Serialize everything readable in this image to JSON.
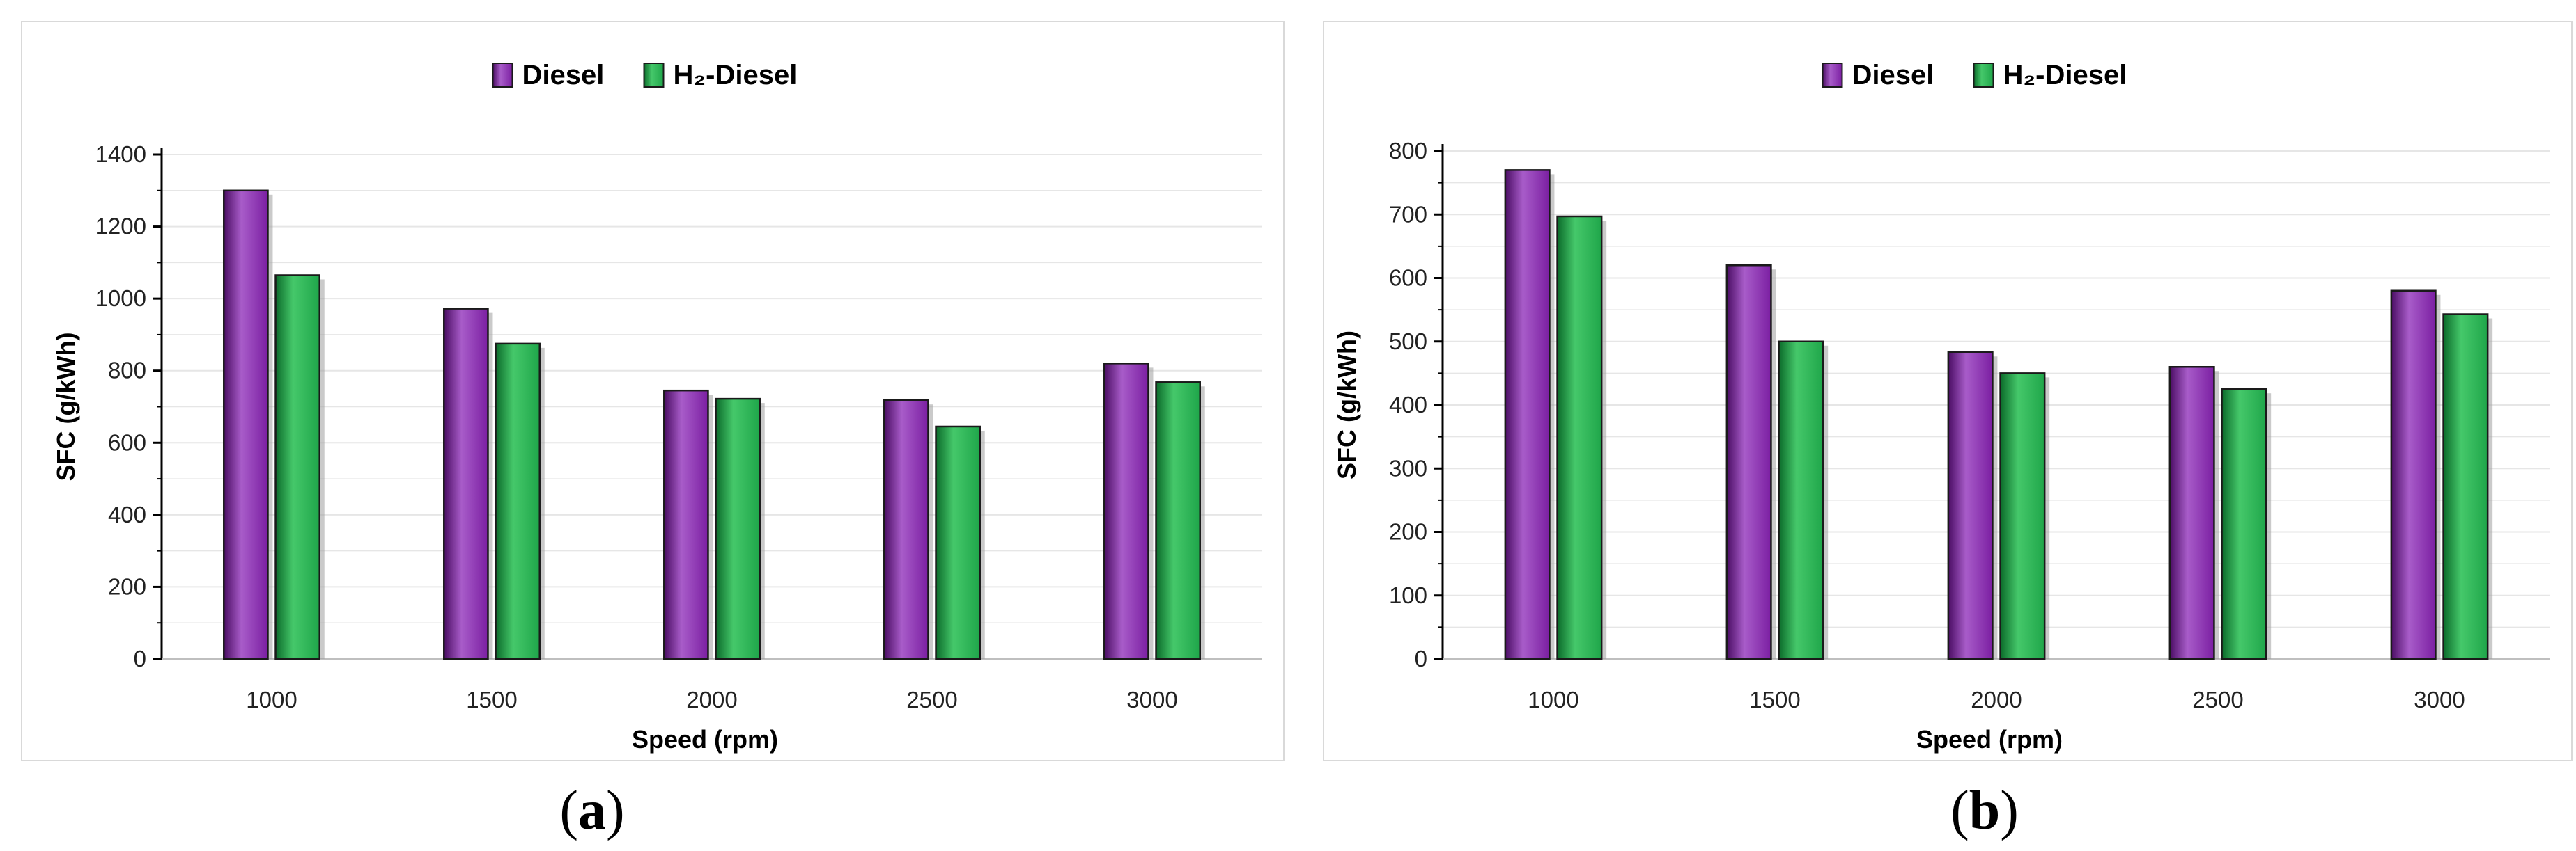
{
  "chart_data": [
    {
      "type": "bar",
      "panel_label": "a",
      "categories": [
        "1000",
        "1500",
        "2000",
        "2500",
        "3000"
      ],
      "series": [
        {
          "name": "Diesel",
          "values": [
            1300,
            972,
            745,
            718,
            820
          ]
        },
        {
          "name": "H₂-Diesel",
          "values": [
            1065,
            875,
            722,
            645,
            768
          ]
        }
      ],
      "xlabel": "Speed (rpm)",
      "ylabel": "SFC (g/kWh)",
      "ylim": [
        0,
        1400
      ],
      "yticks": [
        0,
        200,
        400,
        600,
        800,
        1000,
        1200,
        1400
      ],
      "grid": true,
      "legend": "top-center"
    },
    {
      "type": "bar",
      "panel_label": "b",
      "categories": [
        "1000",
        "1500",
        "2000",
        "2500",
        "3000"
      ],
      "series": [
        {
          "name": "Diesel",
          "values": [
            770,
            620,
            483,
            460,
            580
          ]
        },
        {
          "name": "H₂-Diesel",
          "values": [
            697,
            500,
            450,
            425,
            543
          ]
        }
      ],
      "xlabel": "Speed (rpm)",
      "ylabel": "SFC (g/kWh)",
      "ylim": [
        0,
        800
      ],
      "yticks": [
        0,
        100,
        200,
        300,
        400,
        500,
        600,
        700,
        800
      ],
      "grid": true,
      "legend": "top-center"
    }
  ],
  "colors": {
    "diesel": "#7b1fa2",
    "diesel_dark": "#4a0d63",
    "diesel_light": "#a85cc9",
    "h2": "#1fa64a",
    "h2_dark": "#0b6a2a",
    "h2_light": "#45c86a",
    "grid": "#e6e6e6",
    "axis": "#000000"
  }
}
